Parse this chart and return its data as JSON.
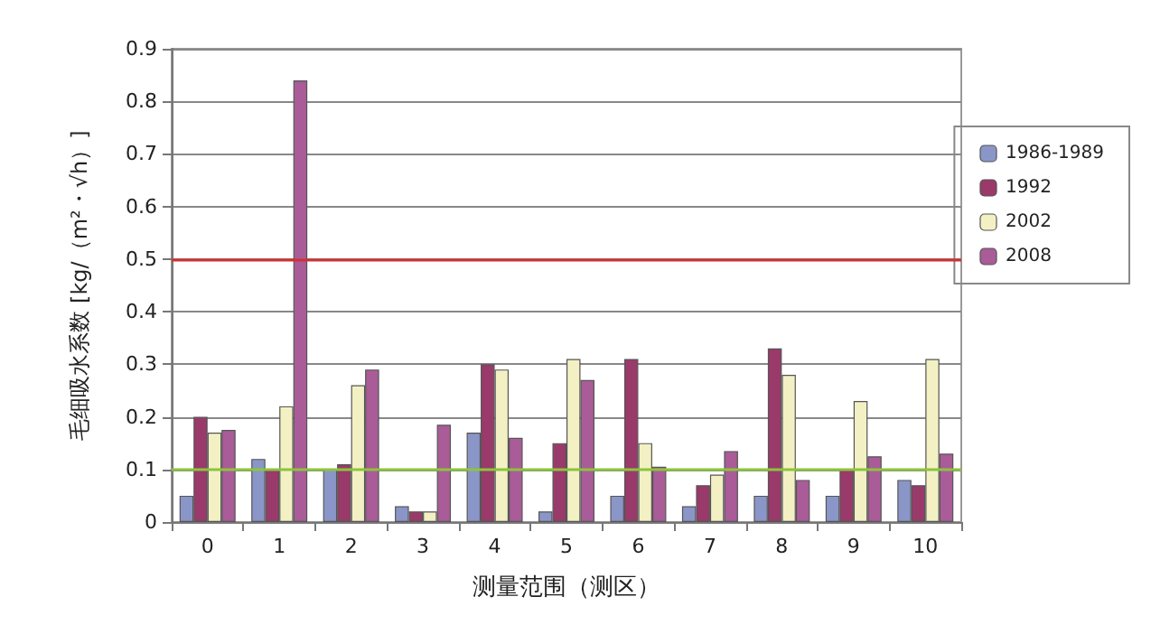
{
  "chart_data": {
    "type": "bar",
    "xlabel": "测量范围（测区）",
    "ylabel": "毛细吸水系数 [kg/（m²・√h）]",
    "categories": [
      "0",
      "1",
      "2",
      "3",
      "4",
      "5",
      "6",
      "7",
      "8",
      "9",
      "10"
    ],
    "series": [
      {
        "name": "1986-1989",
        "color": "#8b96c8",
        "values": [
          0.05,
          0.12,
          0.1,
          0.03,
          0.17,
          0.02,
          0.05,
          0.03,
          0.05,
          0.05,
          0.08
        ]
      },
      {
        "name": "1992",
        "color": "#9a3a6a",
        "values": [
          0.2,
          0.1,
          0.11,
          0.02,
          0.3,
          0.15,
          0.31,
          0.07,
          0.33,
          0.1,
          0.07
        ]
      },
      {
        "name": "2002",
        "color": "#f3f1c4",
        "values": [
          0.17,
          0.22,
          0.26,
          0.02,
          0.29,
          0.31,
          0.15,
          0.09,
          0.28,
          0.23,
          0.31
        ]
      },
      {
        "name": "2008",
        "color": "#a95c98",
        "values": [
          0.175,
          0.84,
          0.29,
          0.185,
          0.16,
          0.27,
          0.105,
          0.135,
          0.08,
          0.125,
          0.13
        ]
      }
    ],
    "ylim": [
      0,
      0.9
    ],
    "yticks": [
      0,
      0.1,
      0.2,
      0.3,
      0.4,
      0.5,
      0.6,
      0.7,
      0.8,
      0.9
    ],
    "ref_lines": [
      {
        "axis": "y",
        "value": 0.5,
        "color": "#d03030"
      },
      {
        "axis": "y",
        "value": 0.1,
        "color": "#8cc43c"
      }
    ],
    "grid": "y",
    "legend": "right"
  }
}
